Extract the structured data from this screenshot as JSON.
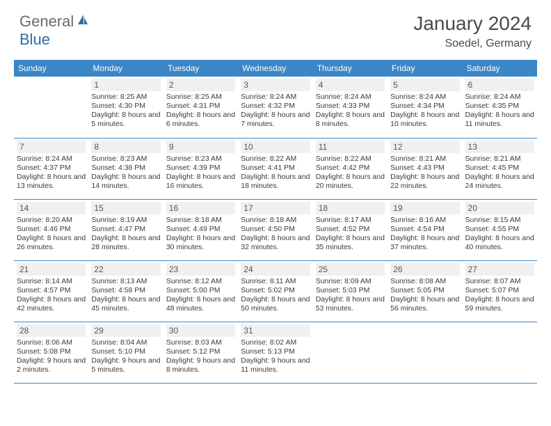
{
  "logo": {
    "part1": "General",
    "part2": "Blue"
  },
  "title": "January 2024",
  "location": "Soedel, Germany",
  "colors": {
    "header_bg": "#3b86c6",
    "header_text": "#ffffff",
    "daynum_bg": "#f0f0f0",
    "border": "#3b86c6",
    "text": "#3a3a3a",
    "logo_gray": "#6b6b6b",
    "logo_blue": "#2f6fa8"
  },
  "dayHeaders": [
    "Sunday",
    "Monday",
    "Tuesday",
    "Wednesday",
    "Thursday",
    "Friday",
    "Saturday"
  ],
  "weeks": [
    [
      null,
      {
        "n": "1",
        "sr": "Sunrise: 8:25 AM",
        "ss": "Sunset: 4:30 PM",
        "dl": "Daylight: 8 hours and 5 minutes."
      },
      {
        "n": "2",
        "sr": "Sunrise: 8:25 AM",
        "ss": "Sunset: 4:31 PM",
        "dl": "Daylight: 8 hours and 6 minutes."
      },
      {
        "n": "3",
        "sr": "Sunrise: 8:24 AM",
        "ss": "Sunset: 4:32 PM",
        "dl": "Daylight: 8 hours and 7 minutes."
      },
      {
        "n": "4",
        "sr": "Sunrise: 8:24 AM",
        "ss": "Sunset: 4:33 PM",
        "dl": "Daylight: 8 hours and 8 minutes."
      },
      {
        "n": "5",
        "sr": "Sunrise: 8:24 AM",
        "ss": "Sunset: 4:34 PM",
        "dl": "Daylight: 8 hours and 10 minutes."
      },
      {
        "n": "6",
        "sr": "Sunrise: 8:24 AM",
        "ss": "Sunset: 4:35 PM",
        "dl": "Daylight: 8 hours and 11 minutes."
      }
    ],
    [
      {
        "n": "7",
        "sr": "Sunrise: 8:24 AM",
        "ss": "Sunset: 4:37 PM",
        "dl": "Daylight: 8 hours and 13 minutes."
      },
      {
        "n": "8",
        "sr": "Sunrise: 8:23 AM",
        "ss": "Sunset: 4:38 PM",
        "dl": "Daylight: 8 hours and 14 minutes."
      },
      {
        "n": "9",
        "sr": "Sunrise: 8:23 AM",
        "ss": "Sunset: 4:39 PM",
        "dl": "Daylight: 8 hours and 16 minutes."
      },
      {
        "n": "10",
        "sr": "Sunrise: 8:22 AM",
        "ss": "Sunset: 4:41 PM",
        "dl": "Daylight: 8 hours and 18 minutes."
      },
      {
        "n": "11",
        "sr": "Sunrise: 8:22 AM",
        "ss": "Sunset: 4:42 PM",
        "dl": "Daylight: 8 hours and 20 minutes."
      },
      {
        "n": "12",
        "sr": "Sunrise: 8:21 AM",
        "ss": "Sunset: 4:43 PM",
        "dl": "Daylight: 8 hours and 22 minutes."
      },
      {
        "n": "13",
        "sr": "Sunrise: 8:21 AM",
        "ss": "Sunset: 4:45 PM",
        "dl": "Daylight: 8 hours and 24 minutes."
      }
    ],
    [
      {
        "n": "14",
        "sr": "Sunrise: 8:20 AM",
        "ss": "Sunset: 4:46 PM",
        "dl": "Daylight: 8 hours and 26 minutes."
      },
      {
        "n": "15",
        "sr": "Sunrise: 8:19 AM",
        "ss": "Sunset: 4:47 PM",
        "dl": "Daylight: 8 hours and 28 minutes."
      },
      {
        "n": "16",
        "sr": "Sunrise: 8:18 AM",
        "ss": "Sunset: 4:49 PM",
        "dl": "Daylight: 8 hours and 30 minutes."
      },
      {
        "n": "17",
        "sr": "Sunrise: 8:18 AM",
        "ss": "Sunset: 4:50 PM",
        "dl": "Daylight: 8 hours and 32 minutes."
      },
      {
        "n": "18",
        "sr": "Sunrise: 8:17 AM",
        "ss": "Sunset: 4:52 PM",
        "dl": "Daylight: 8 hours and 35 minutes."
      },
      {
        "n": "19",
        "sr": "Sunrise: 8:16 AM",
        "ss": "Sunset: 4:54 PM",
        "dl": "Daylight: 8 hours and 37 minutes."
      },
      {
        "n": "20",
        "sr": "Sunrise: 8:15 AM",
        "ss": "Sunset: 4:55 PM",
        "dl": "Daylight: 8 hours and 40 minutes."
      }
    ],
    [
      {
        "n": "21",
        "sr": "Sunrise: 8:14 AM",
        "ss": "Sunset: 4:57 PM",
        "dl": "Daylight: 8 hours and 42 minutes."
      },
      {
        "n": "22",
        "sr": "Sunrise: 8:13 AM",
        "ss": "Sunset: 4:58 PM",
        "dl": "Daylight: 8 hours and 45 minutes."
      },
      {
        "n": "23",
        "sr": "Sunrise: 8:12 AM",
        "ss": "Sunset: 5:00 PM",
        "dl": "Daylight: 8 hours and 48 minutes."
      },
      {
        "n": "24",
        "sr": "Sunrise: 8:11 AM",
        "ss": "Sunset: 5:02 PM",
        "dl": "Daylight: 8 hours and 50 minutes."
      },
      {
        "n": "25",
        "sr": "Sunrise: 8:09 AM",
        "ss": "Sunset: 5:03 PM",
        "dl": "Daylight: 8 hours and 53 minutes."
      },
      {
        "n": "26",
        "sr": "Sunrise: 8:08 AM",
        "ss": "Sunset: 5:05 PM",
        "dl": "Daylight: 8 hours and 56 minutes."
      },
      {
        "n": "27",
        "sr": "Sunrise: 8:07 AM",
        "ss": "Sunset: 5:07 PM",
        "dl": "Daylight: 8 hours and 59 minutes."
      }
    ],
    [
      {
        "n": "28",
        "sr": "Sunrise: 8:06 AM",
        "ss": "Sunset: 5:08 PM",
        "dl": "Daylight: 9 hours and 2 minutes."
      },
      {
        "n": "29",
        "sr": "Sunrise: 8:04 AM",
        "ss": "Sunset: 5:10 PM",
        "dl": "Daylight: 9 hours and 5 minutes."
      },
      {
        "n": "30",
        "sr": "Sunrise: 8:03 AM",
        "ss": "Sunset: 5:12 PM",
        "dl": "Daylight: 9 hours and 8 minutes."
      },
      {
        "n": "31",
        "sr": "Sunrise: 8:02 AM",
        "ss": "Sunset: 5:13 PM",
        "dl": "Daylight: 9 hours and 11 minutes."
      },
      null,
      null,
      null
    ]
  ]
}
